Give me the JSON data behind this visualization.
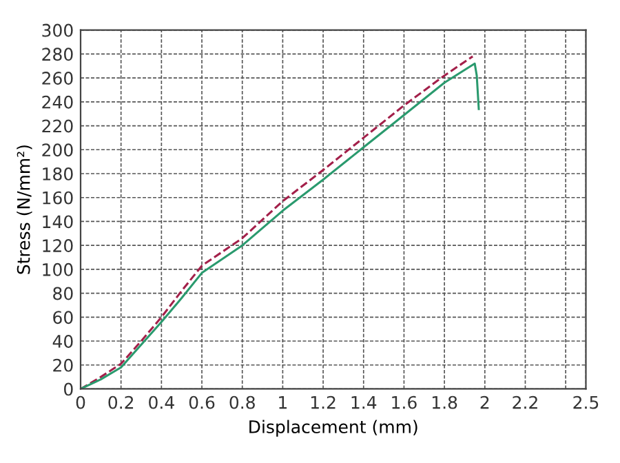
{
  "chart_data": {
    "type": "line",
    "xlabel": "Displacement (mm)",
    "ylabel": "Stress (N/mm²)",
    "xlim": [
      0,
      2.5
    ],
    "ylim": [
      0,
      300
    ],
    "xticks": [
      0,
      0.2,
      0.4,
      0.6,
      0.8,
      1,
      1.2,
      1.4,
      1.6,
      1.8,
      2,
      2.2,
      {
        "value": 2.4,
        "label": null
      },
      2.5
    ],
    "yticks": [
      0,
      20,
      40,
      60,
      80,
      100,
      120,
      140,
      160,
      180,
      200,
      220,
      240,
      260,
      280,
      300
    ],
    "grid": true,
    "marker": "none",
    "series": [
      {
        "color": "#a3204a",
        "line_style": "dashed",
        "x": [
          0,
          0.1,
          0.2,
          0.3,
          0.4,
          0.5,
          0.6,
          0.8,
          1.0,
          1.2,
          1.4,
          1.6,
          1.8,
          1.94
        ],
        "values": [
          0,
          10,
          21,
          40,
          60,
          82,
          103,
          126,
          157,
          183,
          210,
          237,
          262,
          278
        ]
      },
      {
        "color": "#2a9a6e",
        "line_style": "solid",
        "x": [
          0,
          0.1,
          0.2,
          0.3,
          0.4,
          0.5,
          0.6,
          0.8,
          1.0,
          1.2,
          1.4,
          1.6,
          1.8,
          1.95,
          1.96,
          1.97
        ],
        "values": [
          0,
          8,
          18,
          37,
          56,
          76,
          97,
          120,
          149,
          175,
          202,
          229,
          256,
          272,
          262,
          234
        ]
      }
    ]
  }
}
